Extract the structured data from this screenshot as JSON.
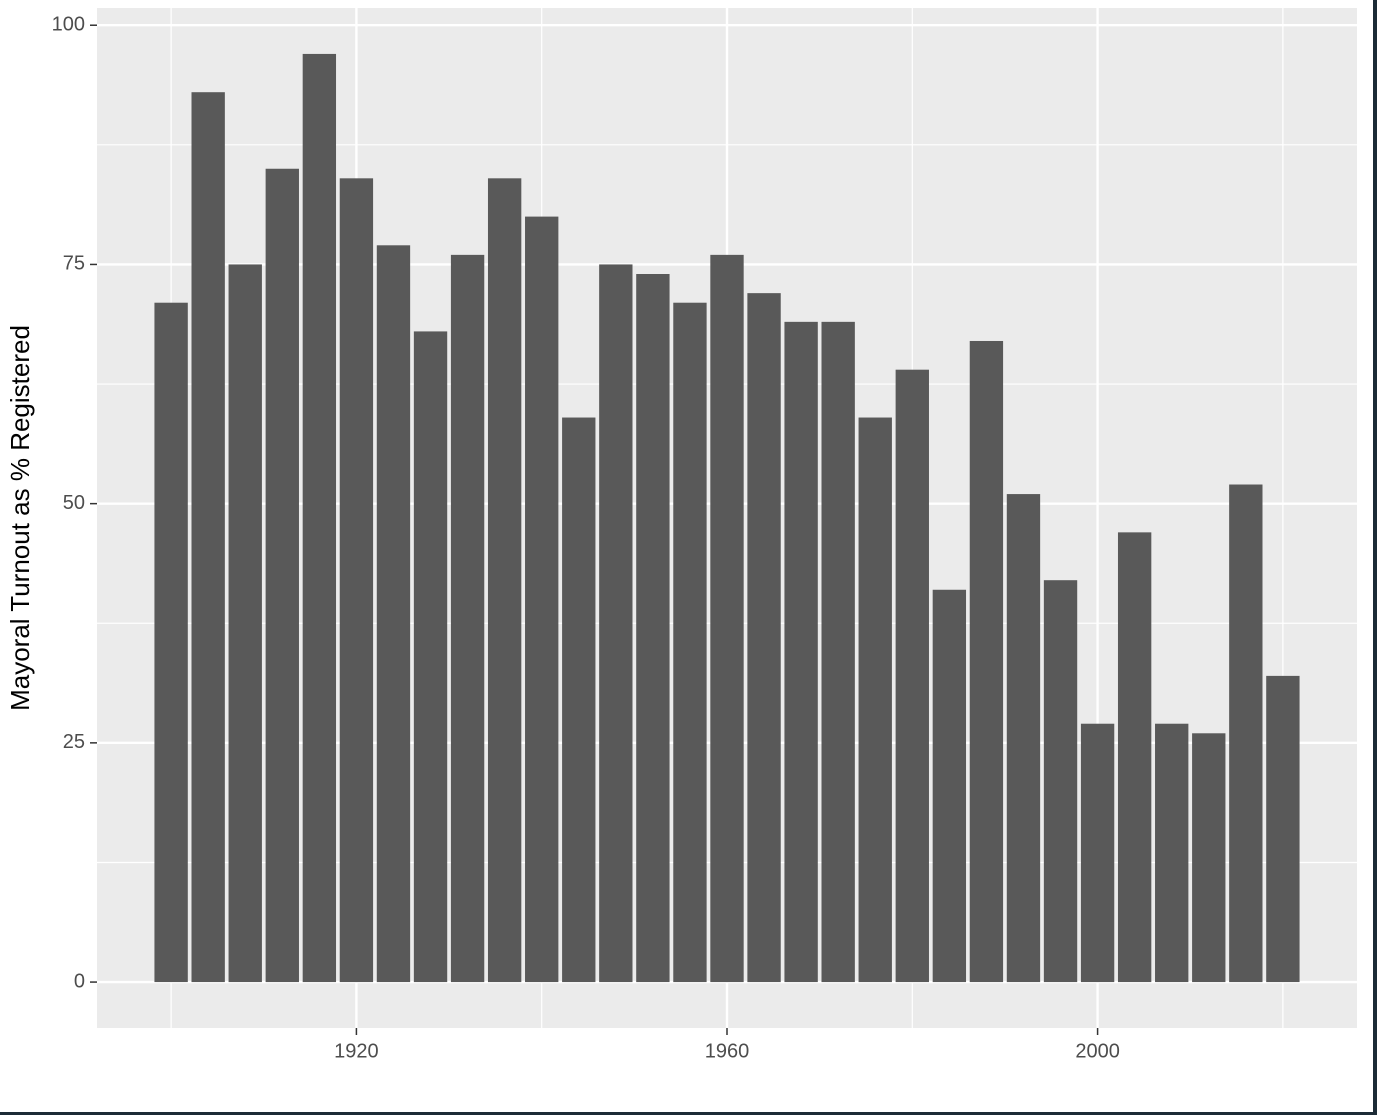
{
  "chart_data": {
    "type": "bar",
    "y_label": "Mayoral Turnout as % Registered",
    "x": [
      1900,
      1904,
      1908,
      1912,
      1916,
      1920,
      1924,
      1928,
      1932,
      1936,
      1940,
      1944,
      1948,
      1952,
      1956,
      1960,
      1964,
      1968,
      1972,
      1976,
      1980,
      1984,
      1988,
      1992,
      1996,
      2000,
      2004,
      2008,
      2012,
      2016,
      2020
    ],
    "values": [
      71,
      93,
      75,
      85,
      97,
      84,
      77,
      68,
      76,
      84,
      80,
      59,
      75,
      74,
      71,
      76,
      72,
      69,
      69,
      59,
      64,
      41,
      67,
      51,
      42,
      27,
      47,
      27,
      26,
      52,
      32
    ],
    "color": "#595959",
    "xlim": [
      1892,
      2028
    ],
    "xticks": [
      1920,
      1960,
      2000
    ],
    "ylim": [
      -4.8,
      101.8
    ],
    "yticks": [
      0,
      25,
      50,
      75,
      100
    ],
    "grid": true
  }
}
